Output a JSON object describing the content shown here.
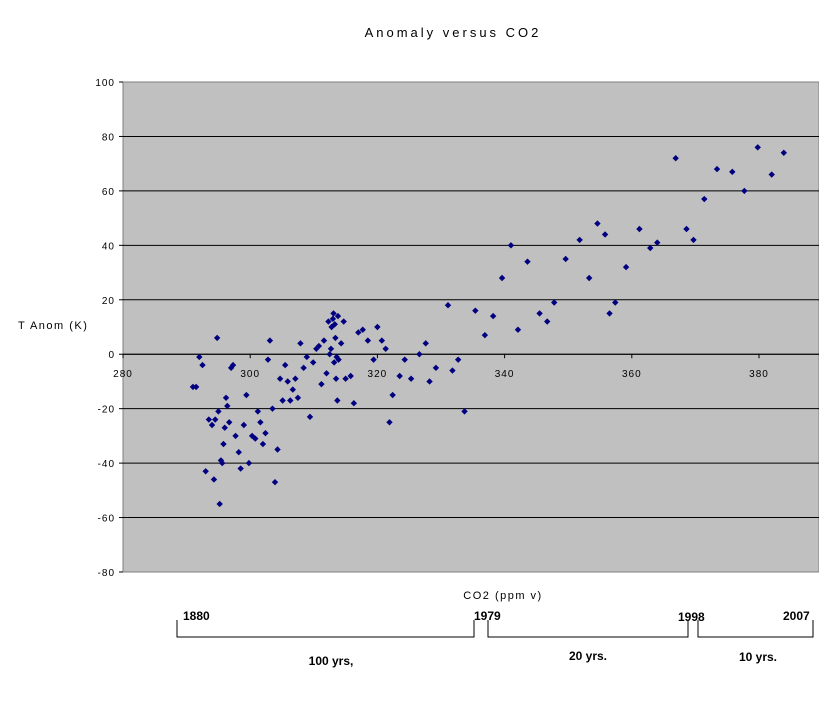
{
  "chart_data": {
    "type": "scatter",
    "title": "Anomaly versus CO2",
    "xlabel": "CO2 (ppm v)",
    "ylabel": "T Anom (K)",
    "xlim": [
      280,
      390
    ],
    "ylim": [
      -80,
      100
    ],
    "x_ticks": [
      280,
      300,
      320,
      340,
      360,
      380
    ],
    "y_ticks": [
      -80,
      -60,
      -40,
      -20,
      0,
      20,
      40,
      60,
      80,
      100
    ],
    "grid": "horizontal",
    "plot_background": "#c0c0c0",
    "marker_color": "#000080",
    "marker_shape": "diamond",
    "points": [
      [
        291.0,
        -12
      ],
      [
        291.5,
        -12
      ],
      [
        292.0,
        -1
      ],
      [
        292.5,
        -4
      ],
      [
        293.0,
        -43
      ],
      [
        293.5,
        -24
      ],
      [
        294.0,
        -26
      ],
      [
        294.3,
        -46
      ],
      [
        294.5,
        -24
      ],
      [
        294.8,
        6
      ],
      [
        295.0,
        -21
      ],
      [
        295.2,
        -55
      ],
      [
        295.4,
        -39
      ],
      [
        295.6,
        -40
      ],
      [
        295.8,
        -33
      ],
      [
        296.0,
        -27
      ],
      [
        296.2,
        -16
      ],
      [
        296.4,
        -19
      ],
      [
        296.7,
        -25
      ],
      [
        297.0,
        -5
      ],
      [
        297.3,
        -4
      ],
      [
        297.7,
        -30
      ],
      [
        298.2,
        -36
      ],
      [
        298.5,
        -42
      ],
      [
        299.0,
        -26
      ],
      [
        299.4,
        -15
      ],
      [
        299.8,
        -40
      ],
      [
        300.3,
        -30
      ],
      [
        300.8,
        -31
      ],
      [
        301.2,
        -21
      ],
      [
        301.6,
        -25
      ],
      [
        302.0,
        -33
      ],
      [
        302.4,
        -29
      ],
      [
        302.8,
        -2
      ],
      [
        303.1,
        5
      ],
      [
        303.5,
        -20
      ],
      [
        303.9,
        -47
      ],
      [
        304.3,
        -35
      ],
      [
        304.7,
        -9
      ],
      [
        305.1,
        -17
      ],
      [
        305.5,
        -4
      ],
      [
        305.9,
        -10
      ],
      [
        306.3,
        -17
      ],
      [
        306.7,
        -13
      ],
      [
        307.1,
        -9
      ],
      [
        307.5,
        -16
      ],
      [
        307.9,
        4
      ],
      [
        308.4,
        -5
      ],
      [
        308.9,
        -1
      ],
      [
        309.4,
        -23
      ],
      [
        309.9,
        -3
      ],
      [
        310.4,
        2
      ],
      [
        310.8,
        3
      ],
      [
        311.2,
        -11
      ],
      [
        311.6,
        5
      ],
      [
        312.0,
        -7
      ],
      [
        312.3,
        12
      ],
      [
        312.5,
        0
      ],
      [
        312.7,
        2
      ],
      [
        312.8,
        10
      ],
      [
        313.0,
        13
      ],
      [
        313.1,
        15
      ],
      [
        313.2,
        -3
      ],
      [
        313.3,
        11
      ],
      [
        313.4,
        6
      ],
      [
        313.5,
        -9
      ],
      [
        313.6,
        -1
      ],
      [
        313.7,
        -17
      ],
      [
        313.8,
        14
      ],
      [
        313.9,
        -2
      ],
      [
        314.3,
        4
      ],
      [
        314.7,
        12
      ],
      [
        315.0,
        -9
      ],
      [
        315.8,
        -8
      ],
      [
        316.3,
        -18
      ],
      [
        317.0,
        8
      ],
      [
        317.7,
        9
      ],
      [
        318.5,
        5
      ],
      [
        319.4,
        -2
      ],
      [
        320.0,
        10
      ],
      [
        320.7,
        5
      ],
      [
        321.3,
        2
      ],
      [
        321.9,
        -25
      ],
      [
        322.4,
        -15
      ],
      [
        323.5,
        -8
      ],
      [
        324.3,
        -2
      ],
      [
        325.3,
        -9
      ],
      [
        326.6,
        0
      ],
      [
        327.6,
        4
      ],
      [
        328.2,
        -10
      ],
      [
        329.2,
        -5
      ],
      [
        331.1,
        18
      ],
      [
        331.8,
        -6
      ],
      [
        332.7,
        -2
      ],
      [
        333.7,
        -21
      ],
      [
        335.4,
        16
      ],
      [
        336.9,
        7
      ],
      [
        338.2,
        14
      ],
      [
        339.6,
        28
      ],
      [
        341.0,
        40
      ],
      [
        342.1,
        9
      ],
      [
        343.6,
        34
      ],
      [
        345.5,
        15
      ],
      [
        346.7,
        12
      ],
      [
        347.8,
        19
      ],
      [
        349.6,
        35
      ],
      [
        351.8,
        42
      ],
      [
        353.3,
        28
      ],
      [
        354.6,
        48
      ],
      [
        355.8,
        44
      ],
      [
        356.5,
        15
      ],
      [
        357.4,
        19
      ],
      [
        359.1,
        32
      ],
      [
        361.2,
        46
      ],
      [
        362.9,
        39
      ],
      [
        364.0,
        41
      ],
      [
        366.9,
        72
      ],
      [
        368.6,
        46
      ],
      [
        369.7,
        42
      ],
      [
        371.4,
        57
      ],
      [
        373.4,
        68
      ],
      [
        375.8,
        67
      ],
      [
        377.7,
        60
      ],
      [
        379.8,
        76
      ],
      [
        382.0,
        66
      ],
      [
        383.9,
        74
      ]
    ]
  },
  "timeline": {
    "years": [
      "1880",
      "1979",
      "1998",
      "2007"
    ],
    "spans": [
      "100 yrs,",
      "20 yrs.",
      "10 yrs."
    ]
  }
}
